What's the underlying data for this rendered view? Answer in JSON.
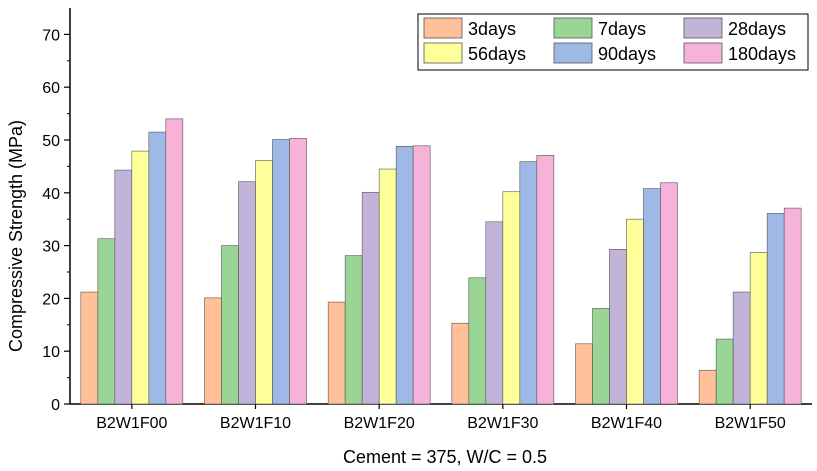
{
  "chart_data": {
    "type": "bar",
    "title": "",
    "xlabel": "Cement = 375, W/C = 0.5",
    "ylabel": "Compressive Strength (MPa)",
    "ylim": [
      0,
      75
    ],
    "yticks": [
      0,
      10,
      20,
      30,
      40,
      50,
      60,
      70
    ],
    "grid": false,
    "legend_position": "top-right",
    "categories": [
      "B2W1F00",
      "B2W1F10",
      "B2W1F20",
      "B2W1F30",
      "B2W1F40",
      "B2W1F50"
    ],
    "series": [
      {
        "name": "3days",
        "color": "#FFC09A",
        "values": [
          21.2,
          20.1,
          19.3,
          15.3,
          11.4,
          6.4
        ]
      },
      {
        "name": "7days",
        "color": "#99D594",
        "values": [
          31.3,
          30.0,
          28.1,
          23.9,
          18.1,
          12.3
        ]
      },
      {
        "name": "28days",
        "color": "#C2B4D9",
        "values": [
          44.3,
          42.1,
          40.1,
          34.5,
          29.3,
          21.2
        ]
      },
      {
        "name": "56days",
        "color": "#FFFF99",
        "values": [
          47.9,
          46.1,
          44.5,
          40.2,
          35.0,
          28.7
        ]
      },
      {
        "name": "90days",
        "color": "#9FB9E6",
        "values": [
          51.5,
          50.1,
          48.8,
          45.9,
          40.8,
          36.1
        ]
      },
      {
        "name": "180days",
        "color": "#F6B2D9",
        "values": [
          54.0,
          50.3,
          48.9,
          47.1,
          41.9,
          37.1
        ]
      }
    ]
  }
}
